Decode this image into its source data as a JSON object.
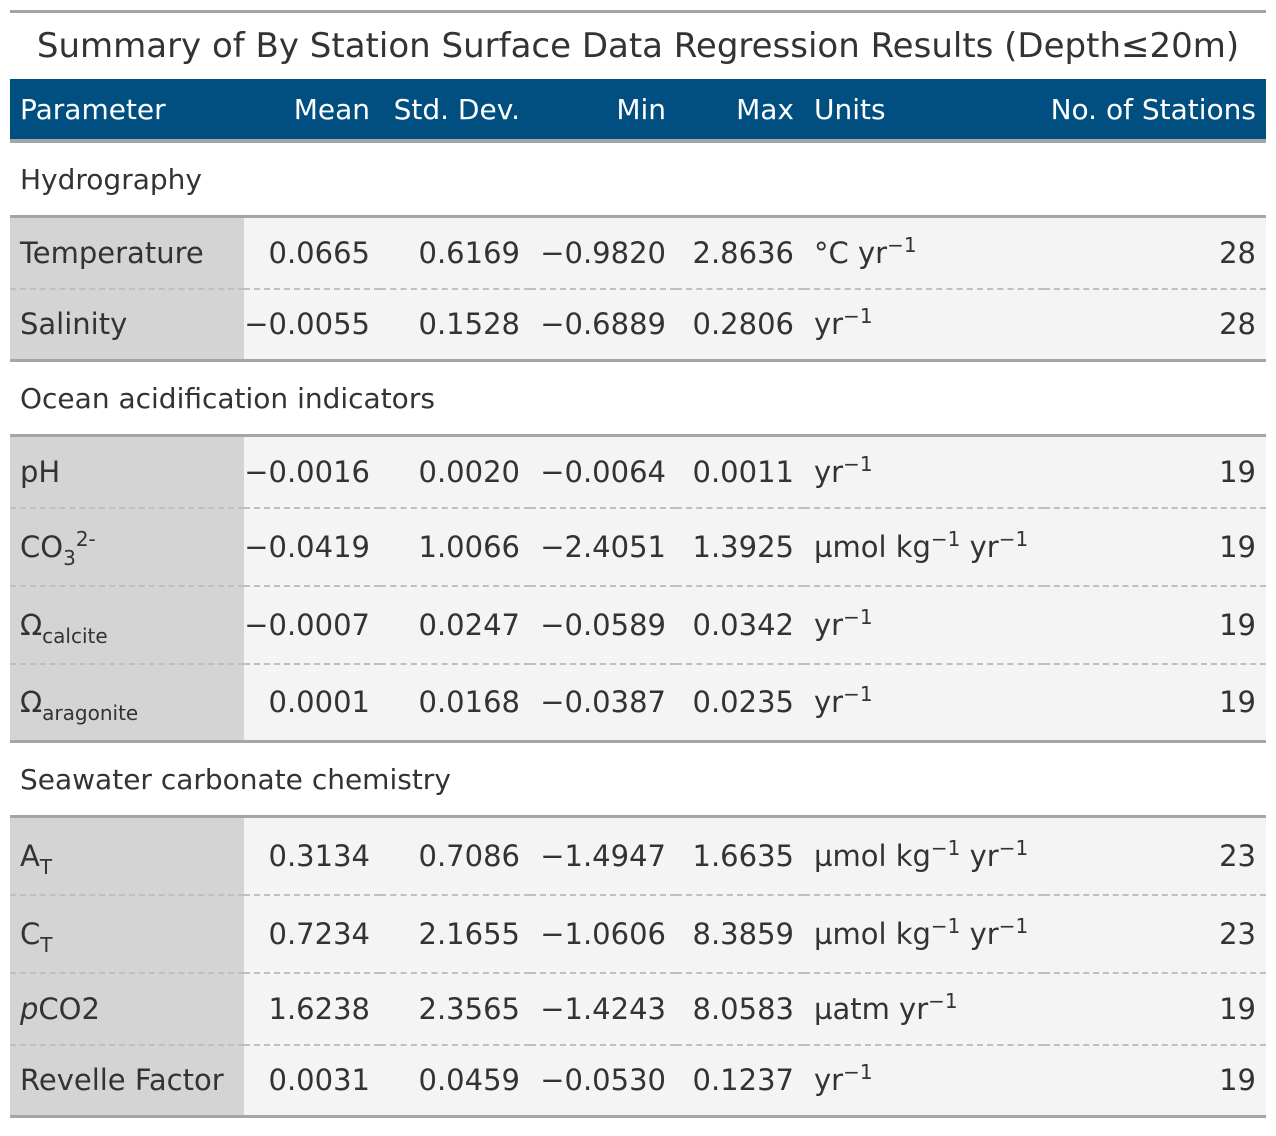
{
  "title": "Summary of By Station Surface Data Regression Results (Depth≤20m)",
  "header": {
    "parameter": "Parameter",
    "mean": "Mean",
    "std_dev": "Std. Dev.",
    "min": "Min",
    "max": "Max",
    "units": "Units",
    "stations": "No. of Stations"
  },
  "groups": [
    {
      "label": "Hydrography",
      "rows": [
        {
          "param": "Temperature",
          "mean": "0.0665",
          "sd": "0.6169",
          "min": "−0.9820",
          "max": "2.8636",
          "unit_a": "°C yr",
          "unit_a_sup": "−1",
          "n": "28"
        },
        {
          "param": "Salinity",
          "mean": "−0.0055",
          "sd": "0.1528",
          "min": "−0.6889",
          "max": "0.2806",
          "unit_a": "yr",
          "unit_a_sup": "−1",
          "n": "28"
        }
      ]
    },
    {
      "label": "Ocean acidification indicators",
      "rows": [
        {
          "param": "pH",
          "mean": "−0.0016",
          "sd": "0.0020",
          "min": "−0.0064",
          "max": "0.0011",
          "unit_a": "yr",
          "unit_a_sup": "−1",
          "n": "19"
        },
        {
          "param": "CO",
          "param_sub": "3",
          "param_sup": "2-",
          "mean": "−0.0419",
          "sd": "1.0066",
          "min": "−2.4051",
          "max": "1.3925",
          "unit_a": "µmol kg",
          "unit_a_sup": "−1",
          "unit_b": " yr",
          "unit_b_sup": "−1",
          "n": "19"
        },
        {
          "param": "Ω",
          "param_sub": "calcite",
          "mean": "−0.0007",
          "sd": "0.0247",
          "min": "−0.0589",
          "max": "0.0342",
          "unit_a": "yr",
          "unit_a_sup": "−1",
          "n": "19"
        },
        {
          "param": "Ω",
          "param_sub": "aragonite",
          "mean": "0.0001",
          "sd": "0.0168",
          "min": "−0.0387",
          "max": "0.0235",
          "unit_a": "yr",
          "unit_a_sup": "−1",
          "n": "19"
        }
      ]
    },
    {
      "label": "Seawater carbonate chemistry",
      "rows": [
        {
          "param": "A",
          "param_sub": "T",
          "mean": "0.3134",
          "sd": "0.7086",
          "min": "−1.4947",
          "max": "1.6635",
          "unit_a": "µmol kg",
          "unit_a_sup": "−1",
          "unit_b": " yr",
          "unit_b_sup": "−1",
          "n": "23"
        },
        {
          "param": "C",
          "param_sub": "T",
          "mean": "0.7234",
          "sd": "2.1655",
          "min": "−1.0606",
          "max": "8.3859",
          "unit_a": "µmol kg",
          "unit_a_sup": "−1",
          "unit_b": " yr",
          "unit_b_sup": "−1",
          "n": "23"
        },
        {
          "param_it": "p",
          "param": "CO2",
          "mean": "1.6238",
          "sd": "2.3565",
          "min": "−1.4243",
          "max": "8.0583",
          "unit_a": "µatm yr",
          "unit_a_sup": "−1",
          "n": "19"
        },
        {
          "param": "Revelle Factor",
          "mean": "0.0031",
          "sd": "0.0459",
          "min": "−0.0530",
          "max": "0.1237",
          "unit_a": "yr",
          "unit_a_sup": "−1",
          "n": "19"
        }
      ]
    }
  ],
  "colors": {
    "header_bg": "#004f80",
    "header_text": "#ffffff",
    "rule": "#a5a5a5",
    "stub_bg": "#d4d4d4",
    "row_bg": "#f4f4f4"
  }
}
